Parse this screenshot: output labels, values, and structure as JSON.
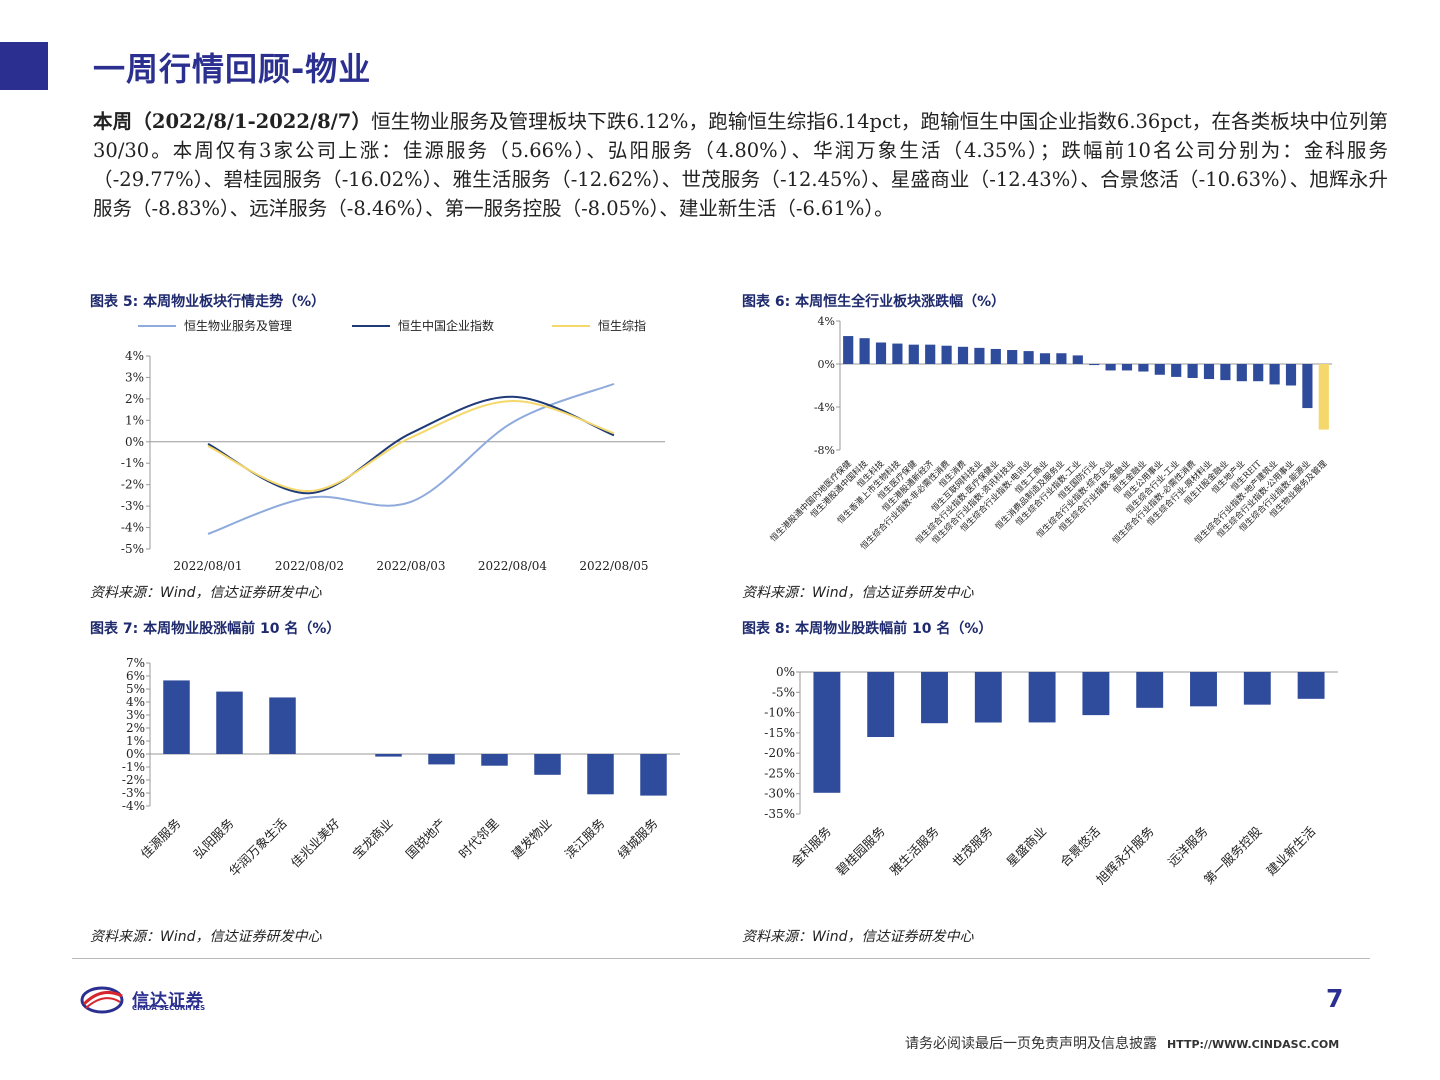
{
  "page": {
    "title": "一周行情回顾-物业",
    "summary_lead": "本周（2022/8/1-2022/8/7）",
    "summary_rest": "恒生物业服务及管理板块下跌6.12%，跑输恒生综指6.14pct，跑输恒生中国企业指数6.36pct，在各类板块中位列第30/30。本周仅有3家公司上涨：佳源服务（5.66%）、弘阳服务（4.80%）、华润万象生活（4.35%）；跌幅前10名公司分别为：金科服务（-29.77%）、碧桂园服务（-16.02%）、雅生活服务（-12.62%）、世茂服务（-12.45%）、星盛商业（-12.43%）、合景悠活（-10.63%）、旭辉永升服务（-8.83%）、远洋服务（-8.46%）、第一服务控股（-8.05%）、建业新生活（-6.61%）。",
    "page_number": "7",
    "disclaimer": "请务必阅读最后一页免责声明及信息披露",
    "url": "HTTP://WWW.CINDASC.COM",
    "logo_cn": "信达证券",
    "logo_en": "CINDA SECURITIES",
    "colors": {
      "brand": "#2b2f8f",
      "bar": "#2f4b9b",
      "highlight_bar": "#f5d86b"
    }
  },
  "fig5": {
    "title": "图表 5:  本周物业板块行情走势（%）",
    "source": "资料来源：Wind，信达证券研发中心"
  },
  "fig6": {
    "title": "图表 6:  本周恒生全行业板块涨跌幅（%）",
    "source": "资料来源：Wind，信达证券研发中心"
  },
  "fig7": {
    "title": "图表 7:  本周物业股涨幅前 10 名（%）",
    "source": "资料来源：Wind，信达证券研发中心"
  },
  "fig8": {
    "title": "图表 8:  本周物业股跌幅前 10 名（%）",
    "source": "资料来源：Wind，信达证券研发中心"
  },
  "chart_data": [
    {
      "id": "fig5",
      "type": "line",
      "categories": [
        "2022/08/01",
        "2022/08/02",
        "2022/08/03",
        "2022/08/04",
        "2022/08/05"
      ],
      "series": [
        {
          "name": "恒生物业服务及管理",
          "color": "#8faadc",
          "values": [
            -4.3,
            -2.6,
            -2.8,
            0.9,
            2.7
          ]
        },
        {
          "name": "恒生中国企业指数",
          "color": "#1f3a78",
          "values": [
            -0.1,
            -2.4,
            0.4,
            2.1,
            0.3
          ]
        },
        {
          "name": "恒生综指",
          "color": "#f5d86b",
          "values": [
            -0.2,
            -2.3,
            0.2,
            1.9,
            0.4
          ]
        }
      ],
      "ylim": [
        -5,
        4
      ],
      "yticks": [
        "4%",
        "3%",
        "2%",
        "1%",
        "0%",
        "-1%",
        "-2%",
        "-3%",
        "-4%",
        "-5%"
      ],
      "legend": "top"
    },
    {
      "id": "fig6",
      "type": "bar",
      "categories": [
        "恒生港股通中国内地医疗保健",
        "恒生港股通中国科技",
        "恒生科技",
        "恒生香港上市生物科技",
        "恒生医疗保健",
        "恒生港股通新经济",
        "恒生综合行业指数-非必需性消费",
        "恒生消费",
        "恒生互联网科技业",
        "恒生综合行业指数-医疗保健业",
        "恒生综合行业指数-资讯科技业",
        "恒生综合行业指数-电讯业",
        "恒生工商业",
        "恒生消费品制造及服务业",
        "恒生综合行业指数-工业",
        "恒生国防行业",
        "恒生综合行业指数-综合企业",
        "恒生综合行业指数-金融业",
        "恒生金融业",
        "恒生公用事业",
        "恒生综合行业-工业",
        "恒生综合行业指数-必需性消费",
        "恒生综合行业-原材料业",
        "恒生H股金融业",
        "恒生地产业",
        "恒生REIT",
        "恒生综合行业指数-地产建筑业",
        "恒生综合行业指数-公用事业",
        "恒生综合行业指数-能源业",
        "恒生物业服务及管理"
      ],
      "values": [
        2.6,
        2.4,
        2.0,
        1.9,
        1.8,
        1.8,
        1.7,
        1.6,
        1.5,
        1.4,
        1.3,
        1.2,
        1.0,
        1.0,
        0.8,
        -0.1,
        -0.6,
        -0.6,
        -0.7,
        -1.0,
        -1.2,
        -1.3,
        -1.4,
        -1.5,
        -1.6,
        -1.6,
        -1.9,
        -2.0,
        -4.1,
        -6.1
      ],
      "ylim": [
        -8,
        4
      ],
      "yticks": [
        "4%",
        "0%",
        "-4%",
        "-8%"
      ]
    },
    {
      "id": "fig7",
      "type": "bar",
      "categories": [
        "佳源服务",
        "弘阳服务",
        "华润万象生活",
        "佳兆业美好",
        "宝龙商业",
        "国锐地产",
        "时代邻里",
        "建发物业",
        "滨江服务",
        "绿城服务"
      ],
      "values": [
        5.66,
        4.8,
        4.35,
        0.0,
        -0.2,
        -0.8,
        -0.9,
        -1.6,
        -3.1,
        -3.2
      ],
      "ylim": [
        -4,
        7
      ],
      "yticks": [
        "7%",
        "6%",
        "5%",
        "4%",
        "3%",
        "2%",
        "1%",
        "0%",
        "-1%",
        "-2%",
        "-3%",
        "-4%"
      ]
    },
    {
      "id": "fig8",
      "type": "bar",
      "categories": [
        "金科服务",
        "碧桂园服务",
        "雅生活服务",
        "世茂服务",
        "星盛商业",
        "合景悠活",
        "旭辉永升服务",
        "远洋服务",
        "第一服务控股",
        "建业新生活"
      ],
      "values": [
        -29.77,
        -16.02,
        -12.62,
        -12.45,
        -12.43,
        -10.63,
        -8.83,
        -8.46,
        -8.05,
        -6.61
      ],
      "ylim": [
        -35,
        0
      ],
      "yticks": [
        "0%",
        "-5%",
        "-10%",
        "-15%",
        "-20%",
        "-25%",
        "-30%",
        "-35%"
      ]
    }
  ]
}
